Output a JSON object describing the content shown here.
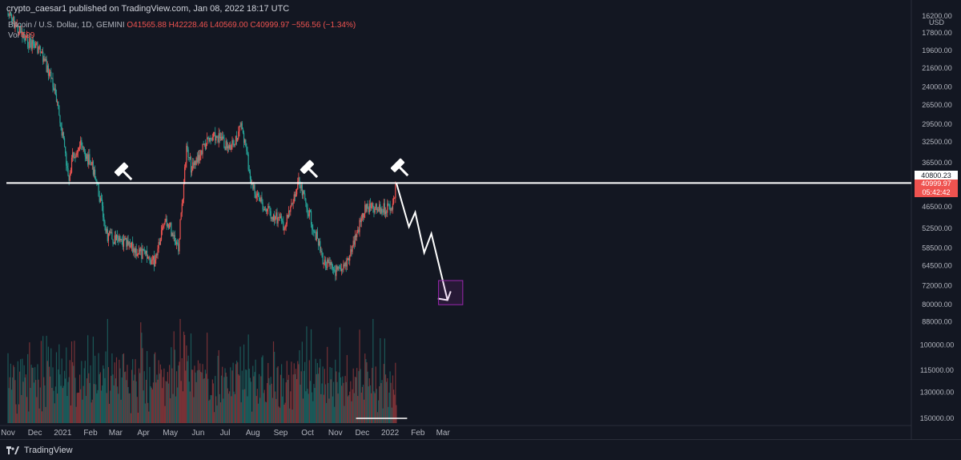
{
  "header": {
    "published_text": "crypto_caesar1 published on TradingView.com, Jan 08, 2022 18:17 UTC"
  },
  "legend": {
    "symbol": "Bitcoin / U.S. Dollar, 1D, GEMINI",
    "ohlc": "O41565.88  H42228.46  L40569.00  C40999.97  −556.56 (−1.34%)",
    "vol_label": "Vol",
    "vol_value": "599"
  },
  "price_axis": {
    "currency": "USD",
    "tag_level": "40800.23",
    "tag_last_price": "40999.97",
    "tag_countdown": "05:42:42"
  },
  "footer": {
    "brand": "TradingView"
  },
  "colors": {
    "up": "#26a69a",
    "down": "#ef5350",
    "background": "#131722",
    "level_line": "#ffffff",
    "target_box": "#9c27b0"
  },
  "icons": [
    "gavel-icon",
    "gavel-icon",
    "gavel-icon",
    "tradingview-logo-icon"
  ],
  "chart_data": {
    "type": "candlestick",
    "scale": "inverted-log",
    "y_ticks": [
      "16200.00",
      "17800.00",
      "19600.00",
      "21600.00",
      "24000.00",
      "26500.00",
      "29500.00",
      "32500.00",
      "36500.00",
      "40800.23",
      "46500.00",
      "52500.00",
      "58500.00",
      "64500.00",
      "72000.00",
      "80000.00",
      "88000.00",
      "100000.00",
      "115000.00",
      "130000.00",
      "150000.00"
    ],
    "x_ticks": [
      "Nov",
      "Dec",
      "2021",
      "Feb",
      "Mar",
      "Apr",
      "May",
      "Jun",
      "Jul",
      "Aug",
      "Sep",
      "Oct",
      "Nov",
      "Dec",
      "2022",
      "Feb",
      "Mar"
    ],
    "price_path": [
      {
        "date": "2020-11-01",
        "price": 16000
      },
      {
        "date": "2020-11-20",
        "price": 18500
      },
      {
        "date": "2020-12-05",
        "price": 19300
      },
      {
        "date": "2020-12-20",
        "price": 23000
      },
      {
        "date": "2021-01-02",
        "price": 32000
      },
      {
        "date": "2021-01-08",
        "price": 41000
      },
      {
        "date": "2021-01-12",
        "price": 35000
      },
      {
        "date": "2021-01-20",
        "price": 33000
      },
      {
        "date": "2021-02-05",
        "price": 38000
      },
      {
        "date": "2021-02-20",
        "price": 55000
      },
      {
        "date": "2021-03-10",
        "price": 57000
      },
      {
        "date": "2021-04-13",
        "price": 63000
      },
      {
        "date": "2021-04-25",
        "price": 49000
      },
      {
        "date": "2021-05-10",
        "price": 58000
      },
      {
        "date": "2021-05-19",
        "price": 34000
      },
      {
        "date": "2021-05-25",
        "price": 38000
      },
      {
        "date": "2021-06-08",
        "price": 33000
      },
      {
        "date": "2021-06-22",
        "price": 31500
      },
      {
        "date": "2021-07-05",
        "price": 34000
      },
      {
        "date": "2021-07-20",
        "price": 29800
      },
      {
        "date": "2021-07-31",
        "price": 41500
      },
      {
        "date": "2021-08-14",
        "price": 47000
      },
      {
        "date": "2021-08-25",
        "price": 49000
      },
      {
        "date": "2021-09-06",
        "price": 51800
      },
      {
        "date": "2021-09-21",
        "price": 41000
      },
      {
        "date": "2021-10-01",
        "price": 47000
      },
      {
        "date": "2021-10-20",
        "price": 64000
      },
      {
        "date": "2021-11-08",
        "price": 67500
      },
      {
        "date": "2021-11-20",
        "price": 58000
      },
      {
        "date": "2021-12-04",
        "price": 47000
      },
      {
        "date": "2021-12-20",
        "price": 47500
      },
      {
        "date": "2022-01-04",
        "price": 46000
      },
      {
        "date": "2022-01-08",
        "price": 41000
      }
    ],
    "horizontal_level": 40800.23,
    "projection_path": [
      {
        "date": "2022-01-08",
        "price": 40800
      },
      {
        "date": "2022-01-22",
        "price": 52000
      },
      {
        "date": "2022-01-29",
        "price": 48000
      },
      {
        "date": "2022-02-08",
        "price": 60000
      },
      {
        "date": "2022-02-16",
        "price": 54000
      },
      {
        "date": "2022-03-06",
        "price": 78000
      }
    ],
    "target_zone": {
      "date_from": "2022-02-24",
      "date_to": "2022-03-23",
      "price_from": 70000,
      "price_to": 80000
    },
    "volume_highlight": {
      "date_from": "2021-11-24",
      "date_to": "2022-01-20"
    }
  }
}
